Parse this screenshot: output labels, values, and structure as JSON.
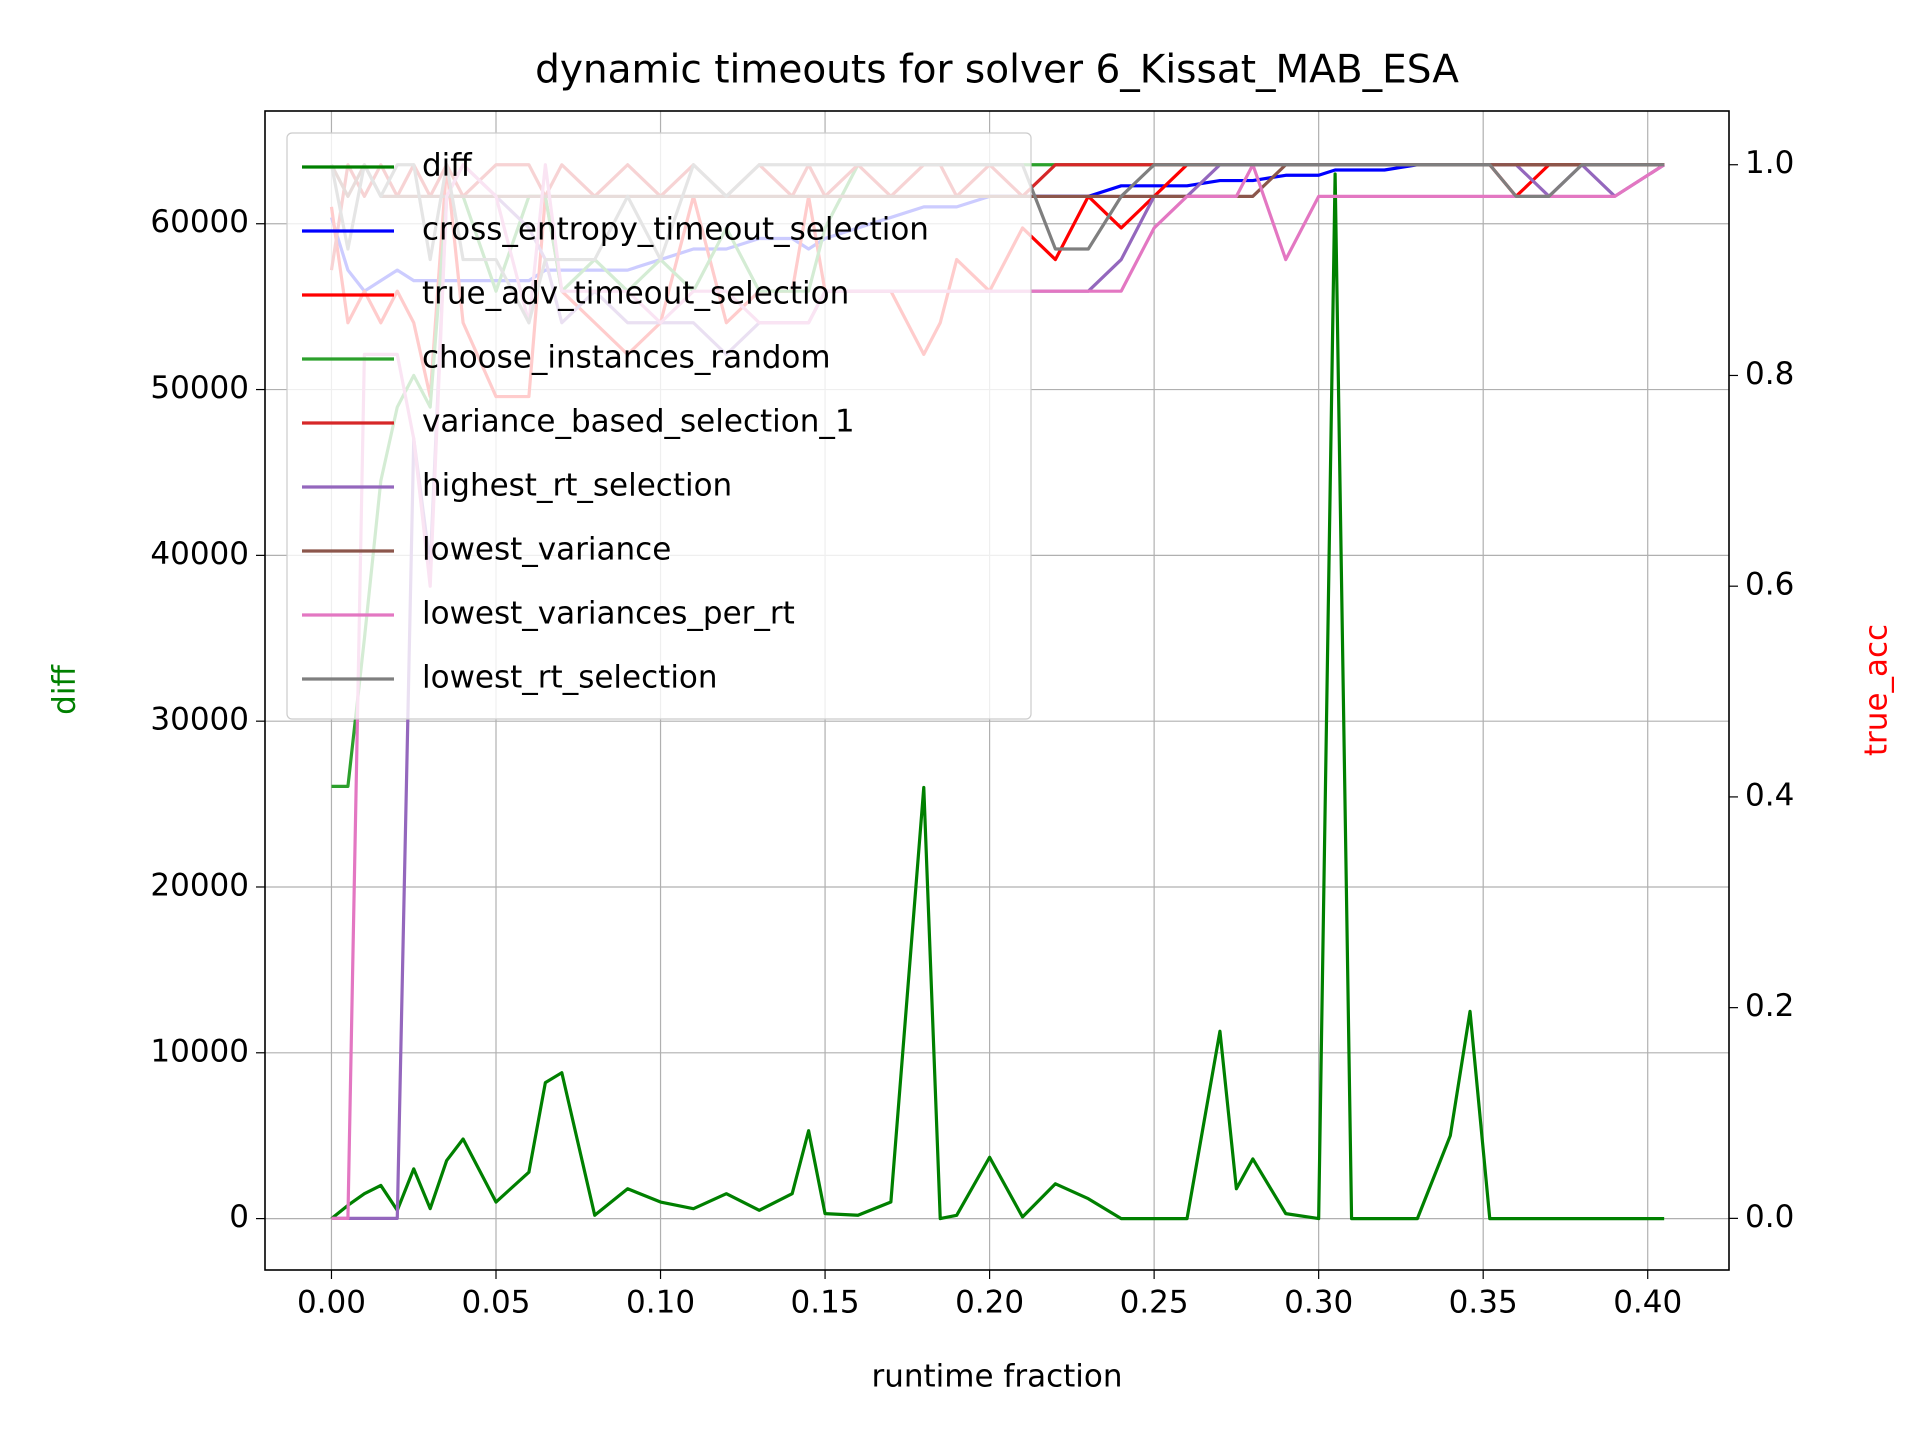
{
  "chart_data": {
    "type": "line",
    "title": "dynamic timeouts for solver 6_Kissat_MAB_ESA",
    "xlabel": "runtime fraction",
    "ylabel": "diff",
    "ylabel_color": "green",
    "y2label": "true_acc",
    "y2label_color": "red",
    "x": [
      0,
      0.005,
      0.01,
      0.015,
      0.02,
      0.025,
      0.03,
      0.035,
      0.04,
      0.05,
      0.06,
      0.065,
      0.07,
      0.08,
      0.09,
      0.1,
      0.11,
      0.12,
      0.13,
      0.14,
      0.145,
      0.15,
      0.16,
      0.17,
      0.18,
      0.185,
      0.19,
      0.2,
      0.21,
      0.22,
      0.23,
      0.24,
      0.25,
      0.26,
      0.27,
      0.275,
      0.28,
      0.29,
      0.3,
      0.305,
      0.31,
      0.32,
      0.33,
      0.34,
      0.346,
      0.352,
      0.36,
      0.37,
      0.38,
      0.39,
      0.405
    ],
    "series": [
      {
        "name": "diff",
        "color": "#008000",
        "axis": "y",
        "values": [
          0,
          800,
          1500,
          2000,
          500,
          3000,
          600,
          3500,
          4800,
          1000,
          2800,
          8200,
          8800,
          200,
          1800,
          1000,
          600,
          1500,
          500,
          1500,
          5300,
          300,
          200,
          1000,
          26000,
          0,
          200,
          3700,
          100,
          2100,
          1200,
          0,
          0,
          0,
          11300,
          1800,
          3600,
          300,
          0,
          63000,
          0,
          0,
          0,
          5000,
          12500,
          0,
          0,
          0,
          0,
          0,
          0
        ]
      },
      {
        "name": "cross_entropy_timeout_selection",
        "color": "#0000ff",
        "axis": "y2",
        "values": [
          0.95,
          0.9,
          0.88,
          0.89,
          0.9,
          0.89,
          0.89,
          0.89,
          0.89,
          0.89,
          0.89,
          0.9,
          0.9,
          0.9,
          0.9,
          0.91,
          0.92,
          0.92,
          0.93,
          0.93,
          0.92,
          0.93,
          0.94,
          0.95,
          0.96,
          0.96,
          0.96,
          0.97,
          0.97,
          0.97,
          0.97,
          0.98,
          0.98,
          0.98,
          0.985,
          0.985,
          0.985,
          0.99,
          0.99,
          0.995,
          0.995,
          0.995,
          1,
          1,
          1,
          1,
          1,
          1,
          1,
          1,
          1
        ]
      },
      {
        "name": "true_adv_timeout_selection",
        "color": "#ff0000",
        "axis": "y2",
        "values": [
          0.96,
          0.85,
          0.88,
          0.85,
          0.88,
          0.85,
          0.78,
          1,
          0.85,
          0.78,
          0.78,
          0.97,
          0.88,
          0.85,
          0.82,
          0.85,
          0.97,
          0.85,
          0.88,
          0.88,
          0.97,
          0.88,
          0.88,
          0.88,
          0.82,
          0.85,
          0.91,
          0.88,
          0.94,
          0.91,
          0.97,
          0.94,
          0.97,
          1,
          1,
          1,
          1,
          1,
          1,
          1,
          1,
          1,
          1,
          1,
          1,
          1,
          0.97,
          1,
          1,
          1,
          1
        ]
      },
      {
        "name": "choose_instances_random",
        "color": "#2ca02c",
        "axis": "y2",
        "values": [
          0.41,
          0.41,
          0.55,
          0.7,
          0.77,
          0.8,
          0.77,
          0.97,
          0.97,
          0.88,
          0.97,
          0.97,
          0.88,
          0.91,
          0.88,
          0.91,
          0.88,
          0.94,
          0.88,
          0.88,
          0.88,
          0.94,
          1,
          1,
          1,
          1,
          1,
          1,
          1,
          1,
          1,
          1,
          1,
          1,
          1,
          1,
          1,
          1,
          1,
          1,
          1,
          1,
          1,
          1,
          1,
          1,
          1,
          1,
          1,
          1,
          1
        ]
      },
      {
        "name": "variance_based_selection_1",
        "color": "#d62728",
        "axis": "y2",
        "values": [
          0.9,
          1,
          0.97,
          1,
          0.97,
          1,
          0.97,
          1,
          0.97,
          1,
          1,
          0.97,
          1,
          0.97,
          1,
          0.97,
          1,
          0.97,
          1,
          0.97,
          1,
          0.97,
          1,
          0.97,
          1,
          1,
          0.97,
          1,
          0.97,
          1,
          1,
          1,
          1,
          1,
          1,
          1,
          1,
          1,
          1,
          1,
          1,
          1,
          1,
          1,
          1,
          1,
          1,
          1,
          1,
          1,
          1
        ]
      },
      {
        "name": "highest_rt_selection",
        "color": "#9467bd",
        "axis": "y2",
        "values": [
          0,
          0,
          0,
          0,
          0,
          0.74,
          0.62,
          0.97,
          1,
          0.97,
          0.94,
          0.91,
          0.85,
          0.88,
          0.85,
          0.85,
          0.85,
          0.82,
          0.85,
          0.85,
          0.85,
          0.88,
          0.88,
          0.88,
          0.88,
          0.88,
          0.88,
          0.88,
          0.88,
          0.88,
          0.88,
          0.91,
          0.97,
          0.97,
          1,
          1,
          1,
          1,
          1,
          1,
          1,
          1,
          1,
          1,
          1,
          1,
          1,
          0.97,
          1,
          0.97,
          1
        ]
      },
      {
        "name": "lowest_variance",
        "color": "#8c564b",
        "axis": "y2",
        "values": [
          1,
          0.97,
          1,
          0.97,
          0.97,
          0.97,
          0.97,
          0.97,
          0.97,
          0.97,
          0.97,
          0.97,
          0.97,
          0.97,
          0.97,
          0.97,
          0.97,
          0.97,
          0.97,
          0.97,
          0.97,
          0.97,
          0.97,
          0.97,
          0.97,
          0.97,
          0.97,
          0.97,
          0.97,
          0.97,
          0.97,
          0.97,
          0.97,
          0.97,
          0.97,
          0.97,
          0.97,
          1,
          1,
          1,
          1,
          1,
          1,
          1,
          1,
          1,
          1,
          1,
          1,
          1,
          1
        ]
      },
      {
        "name": "lowest_variances_per_rt",
        "color": "#e377c2",
        "axis": "y2",
        "values": [
          0,
          0,
          0.82,
          0.82,
          0.82,
          0.74,
          0.6,
          0.97,
          1,
          0.97,
          0.85,
          1,
          0.88,
          0.88,
          0.88,
          0.85,
          0.88,
          0.88,
          0.85,
          0.85,
          0.85,
          0.88,
          0.88,
          0.88,
          0.88,
          0.88,
          0.88,
          0.88,
          0.88,
          0.88,
          0.88,
          0.88,
          0.94,
          0.97,
          0.97,
          0.97,
          1,
          0.91,
          0.97,
          0.97,
          0.97,
          0.97,
          0.97,
          0.97,
          0.97,
          0.97,
          0.97,
          0.97,
          0.97,
          0.97,
          1
        ]
      },
      {
        "name": "lowest_rt_selection",
        "color": "#7f7f7f",
        "axis": "y2",
        "values": [
          1,
          0.92,
          1,
          0.97,
          1,
          1,
          0.91,
          1,
          0.91,
          0.91,
          0.85,
          0.91,
          0.91,
          0.91,
          0.97,
          0.91,
          1,
          0.97,
          1,
          1,
          1,
          1,
          1,
          1,
          1,
          1,
          1,
          1,
          1,
          0.92,
          0.92,
          0.97,
          1,
          1,
          1,
          1,
          1,
          1,
          1,
          1,
          1,
          1,
          1,
          1,
          1,
          1,
          0.97,
          0.97,
          1,
          1,
          1
        ]
      }
    ],
    "xlim": [
      -0.0202,
      0.4247
    ],
    "xticks": [
      {
        "value": 0,
        "label": "0.00"
      },
      {
        "value": 0.05,
        "label": "0.05"
      },
      {
        "value": 0.1,
        "label": "0.10"
      },
      {
        "value": 0.15,
        "label": "0.15"
      },
      {
        "value": 0.2,
        "label": "0.20"
      },
      {
        "value": 0.25,
        "label": "0.25"
      },
      {
        "value": 0.3,
        "label": "0.30"
      },
      {
        "value": 0.35,
        "label": "0.35"
      },
      {
        "value": 0.4,
        "label": "0.40"
      }
    ],
    "ylim": [
      -3100,
      66800
    ],
    "yticks": [
      0,
      10000,
      20000,
      30000,
      40000,
      50000,
      60000
    ],
    "y2lim": [
      -0.049,
      1.051
    ],
    "y2ticks": [
      {
        "value": 0,
        "label": "0.0"
      },
      0.2,
      0.4,
      0.6,
      0.8,
      {
        "value": 1,
        "label": "1.0"
      }
    ],
    "grid": true,
    "legend": "upper-left"
  }
}
